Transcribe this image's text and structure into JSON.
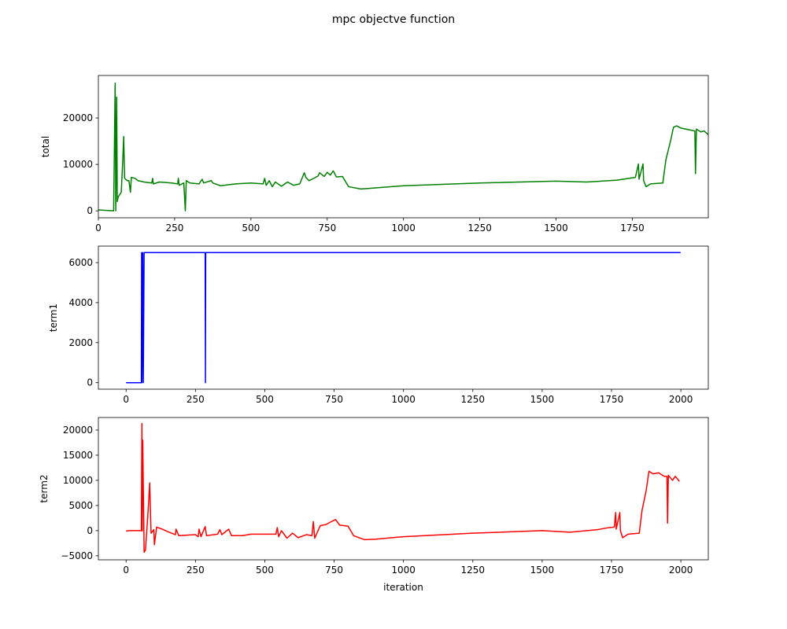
{
  "title": "mpc objectve function",
  "chart_data": [
    {
      "type": "line",
      "ylabel": "total",
      "x": [
        0,
        50,
        55,
        57,
        60,
        62,
        65,
        75,
        80,
        83,
        86,
        95,
        100,
        105,
        108,
        120,
        130,
        150,
        175,
        178,
        180,
        200,
        240,
        260,
        262,
        265,
        280,
        285,
        288,
        300,
        330,
        340,
        345,
        370,
        375,
        400,
        450,
        500,
        540,
        545,
        550,
        560,
        570,
        580,
        600,
        620,
        640,
        660,
        675,
        680,
        690,
        700,
        720,
        725,
        740,
        750,
        760,
        770,
        780,
        800,
        820,
        860,
        900,
        1000,
        1250,
        1500,
        1600,
        1700,
        1740,
        1760,
        1770,
        1772,
        1785,
        1787,
        1795,
        1810,
        1850,
        1860,
        1875,
        1885,
        1895,
        1910,
        1940,
        1955,
        1957,
        1960,
        1975,
        1985,
        1999
      ],
      "series": [
        {
          "name": "total",
          "color": "#008000",
          "values": [
            200,
            0,
            27500,
            0,
            24500,
            2000,
            3000,
            4000,
            11000,
            16000,
            7000,
            6500,
            6500,
            4000,
            7200,
            7000,
            6500,
            6200,
            6000,
            7000,
            5800,
            6200,
            6000,
            5800,
            7000,
            5500,
            6000,
            0,
            6500,
            6000,
            5800,
            6800,
            6000,
            6500,
            6000,
            5400,
            5800,
            6000,
            5800,
            7000,
            5500,
            6500,
            5200,
            6200,
            5300,
            6200,
            5500,
            5800,
            8200,
            7200,
            6500,
            6800,
            7500,
            8200,
            7400,
            8300,
            7700,
            8600,
            7300,
            7400,
            5200,
            4700,
            4900,
            5400,
            6000,
            6400,
            6200,
            6600,
            7000,
            7200,
            10100,
            6800,
            10100,
            6500,
            5200,
            5800,
            6000,
            11000,
            15000,
            18000,
            18300,
            17800,
            17400,
            17200,
            8000,
            17600,
            17000,
            17200,
            16400
          ]
        }
      ],
      "xlim": [
        0,
        1999
      ],
      "xticks": [
        0,
        250,
        500,
        750,
        1000,
        1250,
        1500,
        1750
      ],
      "ylim": [
        -1500,
        29150
      ],
      "yticks": [
        0,
        10000,
        20000
      ]
    },
    {
      "type": "line",
      "ylabel": "term1",
      "x": [
        0,
        55,
        56,
        57,
        60,
        62,
        65,
        285,
        286,
        287,
        1999
      ],
      "series": [
        {
          "name": "term1",
          "color": "#0000ff",
          "values": [
            0,
            0,
            6500,
            0,
            6500,
            0,
            6500,
            6500,
            0,
            6500,
            6500
          ]
        }
      ],
      "xlim": [
        -99.95,
        2098.95
      ],
      "xticks": [
        0,
        250,
        500,
        750,
        1000,
        1250,
        1500,
        1750,
        2000
      ],
      "ylim": [
        -325,
        6825
      ],
      "yticks": [
        0,
        2000,
        4000,
        6000
      ]
    },
    {
      "type": "line",
      "ylabel": "term2",
      "xlabel": "iteration",
      "x": [
        0,
        10,
        55,
        57,
        58,
        60,
        65,
        70,
        80,
        85,
        90,
        100,
        102,
        110,
        130,
        150,
        178,
        180,
        190,
        250,
        260,
        263,
        270,
        285,
        290,
        330,
        338,
        345,
        370,
        380,
        420,
        450,
        500,
        540,
        545,
        550,
        560,
        580,
        600,
        620,
        650,
        670,
        675,
        680,
        700,
        720,
        740,
        755,
        770,
        800,
        820,
        860,
        900,
        1000,
        1250,
        1500,
        1600,
        1700,
        1740,
        1760,
        1765,
        1767,
        1780,
        1782,
        1790,
        1810,
        1850,
        1860,
        1875,
        1885,
        1900,
        1920,
        1940,
        1950,
        1952,
        1955,
        1970,
        1980,
        1995
      ],
      "series": [
        {
          "name": "term2",
          "color": "#ff0000",
          "values": [
            -100,
            0,
            0,
            21300,
            -100,
            18000,
            -4300,
            -3800,
            4500,
            9500,
            -500,
            200,
            -2800,
            700,
            300,
            -200,
            -800,
            300,
            -1000,
            -800,
            -1200,
            300,
            -1200,
            800,
            -1000,
            -700,
            200,
            -800,
            300,
            -1000,
            -1000,
            -700,
            -700,
            -700,
            600,
            -1200,
            0,
            -1500,
            -500,
            -1400,
            -800,
            -1000,
            1800,
            -1500,
            1000,
            1200,
            1800,
            2200,
            1100,
            900,
            -1000,
            -1800,
            -1700,
            -1200,
            -500,
            0,
            -300,
            200,
            600,
            700,
            3600,
            300,
            3600,
            0,
            -1400,
            -700,
            -500,
            4000,
            8000,
            11800,
            11300,
            11500,
            10800,
            10800,
            1500,
            11000,
            10000,
            10800,
            9800
          ]
        }
      ],
      "xlim": [
        -99.95,
        2098.95
      ],
      "xticks": [
        0,
        250,
        500,
        750,
        1000,
        1250,
        1500,
        1750,
        2000
      ],
      "ylim": [
        -5800,
        22500
      ],
      "yticks": [
        {
          "value": -5000,
          "label": "−5000"
        },
        0,
        5000,
        10000,
        15000,
        20000
      ]
    }
  ]
}
